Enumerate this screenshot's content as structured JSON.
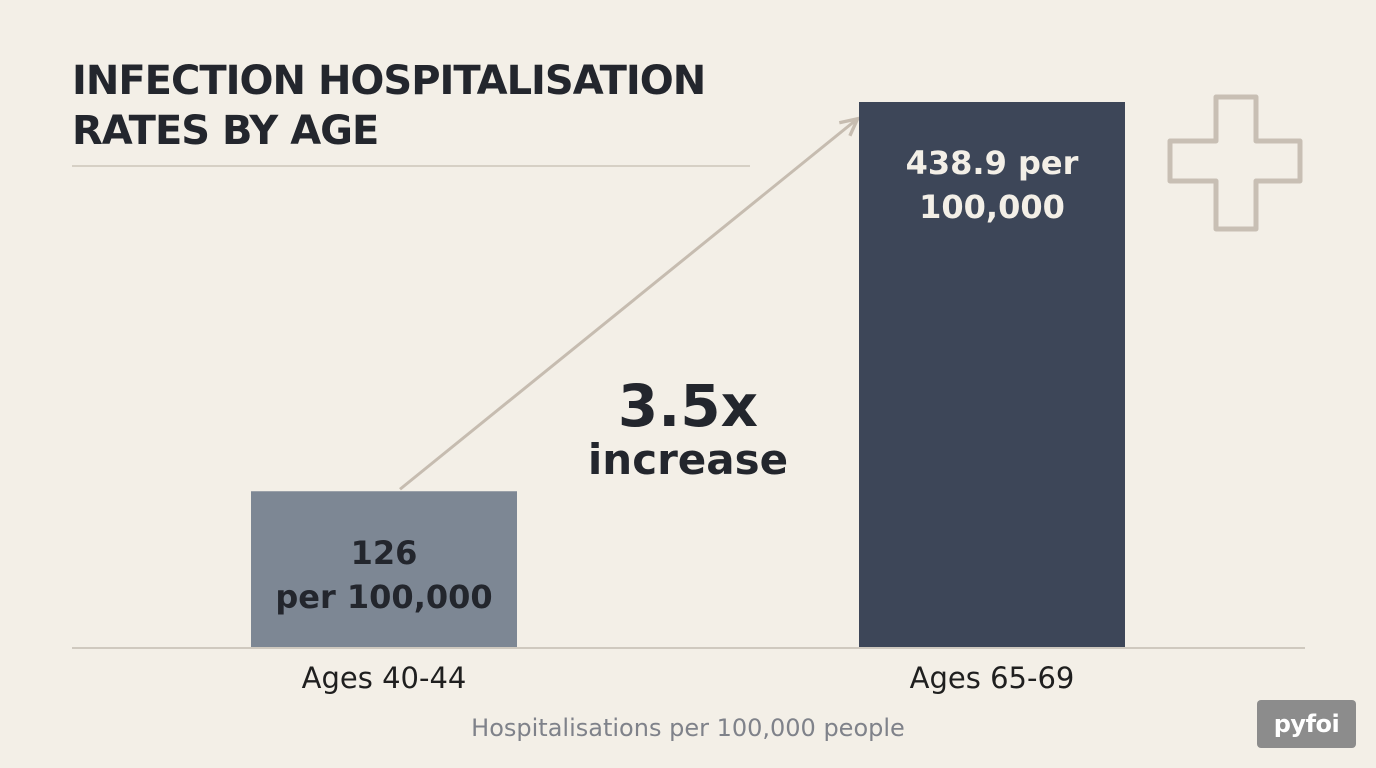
{
  "title_lines": [
    "INFECTION HOSPITALISATION",
    "RATES BY AGE"
  ],
  "chart_data": {
    "type": "bar",
    "categories": [
      "Ages 40-44",
      "Ages 65-69"
    ],
    "values": [
      126,
      438.9
    ],
    "bar_labels": [
      [
        "126",
        "per 100,000"
      ],
      [
        "438.9 per",
        "100,000"
      ]
    ],
    "ymin": 0,
    "ymax": 438.9,
    "xlabel": "Hospitalisations per 100,000 people",
    "annotation": {
      "value": "3.5x",
      "word": "increase"
    },
    "colors": {
      "bars": [
        "#7d8794",
        "#3d4658"
      ],
      "bar_label_text": [
        "#23262d",
        "#f3efe7"
      ],
      "arrow": "#c6bcb0",
      "axis": "#cfc9bf"
    }
  },
  "icons": {
    "corner": "medical-cross-icon"
  },
  "logo": {
    "text": "pyfoi"
  }
}
